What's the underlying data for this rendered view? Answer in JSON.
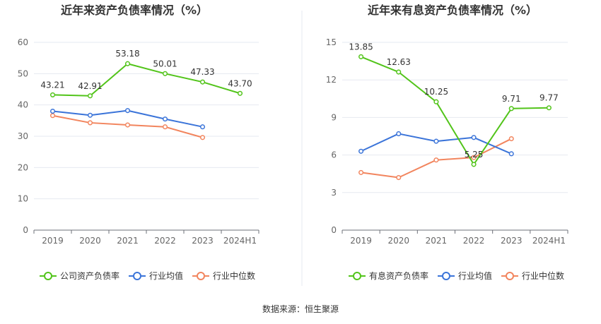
{
  "source": "数据来源：恒生聚源",
  "chart_data": [
    {
      "type": "line",
      "title": "近年来资产负债率情况（%）",
      "categories": [
        "2019",
        "2020",
        "2021",
        "2022",
        "2023",
        "2024H1"
      ],
      "ylim": [
        0,
        60
      ],
      "yticks": [
        "0",
        "10",
        "20",
        "30",
        "40",
        "50",
        "60"
      ],
      "grid": true,
      "legend_position": "bottom",
      "series": [
        {
          "name": "公司资产负债率",
          "color": "#52c41a",
          "values": [
            43.21,
            42.91,
            53.18,
            50.01,
            47.33,
            43.7
          ],
          "labels": [
            "43.21",
            "42.91",
            "53.18",
            "50.01",
            "47.33",
            "43.70"
          ]
        },
        {
          "name": "行业均值",
          "color": "#3b74d9",
          "values": [
            38.0,
            36.7,
            38.2,
            35.5,
            33.0,
            null
          ]
        },
        {
          "name": "行业中位数",
          "color": "#f2855e",
          "values": [
            36.6,
            34.3,
            33.6,
            33.0,
            29.6,
            null
          ]
        }
      ]
    },
    {
      "type": "line",
      "title": "近年来有息资产负债率情况（%）",
      "categories": [
        "2019",
        "2020",
        "2021",
        "2022",
        "2023",
        "2024H1"
      ],
      "ylim": [
        0,
        15
      ],
      "yticks": [
        "0",
        "3",
        "6",
        "9",
        "12",
        "15"
      ],
      "grid": true,
      "legend_position": "bottom",
      "series": [
        {
          "name": "有息资产负债率",
          "color": "#52c41a",
          "values": [
            13.85,
            12.63,
            10.25,
            5.25,
            9.71,
            9.77
          ],
          "labels": [
            "13.85",
            "12.63",
            "10.25",
            "5.25",
            "9.71",
            "9.77"
          ]
        },
        {
          "name": "行业均值",
          "color": "#3b74d9",
          "values": [
            6.3,
            7.7,
            7.1,
            7.4,
            6.1,
            null
          ]
        },
        {
          "name": "行业中位数",
          "color": "#f2855e",
          "values": [
            4.6,
            4.2,
            5.6,
            5.8,
            7.3,
            null
          ]
        }
      ]
    }
  ]
}
